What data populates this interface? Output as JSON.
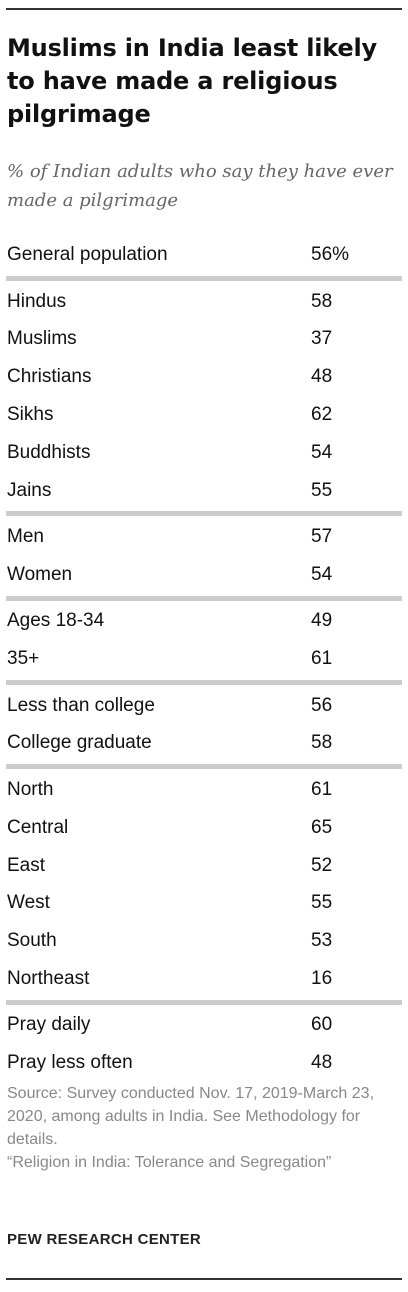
{
  "title": "Muslims in India least likely to have made a religious pilgrimage",
  "subtitle": "% of Indian adults who say they have ever made a pilgrimage",
  "chart_data": {
    "type": "table",
    "title": "Muslims in India least likely to have made a religious pilgrimage",
    "subtitle": "% of Indian adults who say they have ever made a pilgrimage",
    "groups": [
      {
        "rows": [
          {
            "label": "General population",
            "value": 56,
            "display": "56%"
          }
        ]
      },
      {
        "rows": [
          {
            "label": "Hindus",
            "value": 58,
            "display": "58"
          },
          {
            "label": "Muslims",
            "value": 37,
            "display": "37"
          },
          {
            "label": "Christians",
            "value": 48,
            "display": "48"
          },
          {
            "label": "Sikhs",
            "value": 62,
            "display": "62"
          },
          {
            "label": "Buddhists",
            "value": 54,
            "display": "54"
          },
          {
            "label": "Jains",
            "value": 55,
            "display": "55"
          }
        ]
      },
      {
        "rows": [
          {
            "label": "Men",
            "value": 57,
            "display": "57"
          },
          {
            "label": "Women",
            "value": 54,
            "display": "54"
          }
        ]
      },
      {
        "rows": [
          {
            "label": "Ages 18-34",
            "value": 49,
            "display": "49"
          },
          {
            "label": "35+",
            "value": 61,
            "display": "61"
          }
        ]
      },
      {
        "rows": [
          {
            "label": "Less than college",
            "value": 56,
            "display": "56"
          },
          {
            "label": "College graduate",
            "value": 58,
            "display": "58"
          }
        ]
      },
      {
        "rows": [
          {
            "label": "North",
            "value": 61,
            "display": "61"
          },
          {
            "label": "Central",
            "value": 65,
            "display": "65"
          },
          {
            "label": "East",
            "value": 52,
            "display": "52"
          },
          {
            "label": "West",
            "value": 55,
            "display": "55"
          },
          {
            "label": "South",
            "value": 53,
            "display": "53"
          },
          {
            "label": "Northeast",
            "value": 16,
            "display": "16"
          }
        ]
      },
      {
        "rows": [
          {
            "label": "Pray daily",
            "value": 60,
            "display": "60"
          },
          {
            "label": "Pray less often",
            "value": 48,
            "display": "48"
          }
        ]
      }
    ]
  },
  "source": {
    "note": "Source: Survey conducted Nov. 17, 2019-March 23, 2020, among adults in India. See Methodology for details.",
    "report": "“Religion in India: Tolerance and Segregation”"
  },
  "brand": "PEW RESEARCH CENTER",
  "colors": {
    "text": "#111111",
    "subtitle": "#666666",
    "divider": "#cccccc",
    "source": "#888888"
  }
}
